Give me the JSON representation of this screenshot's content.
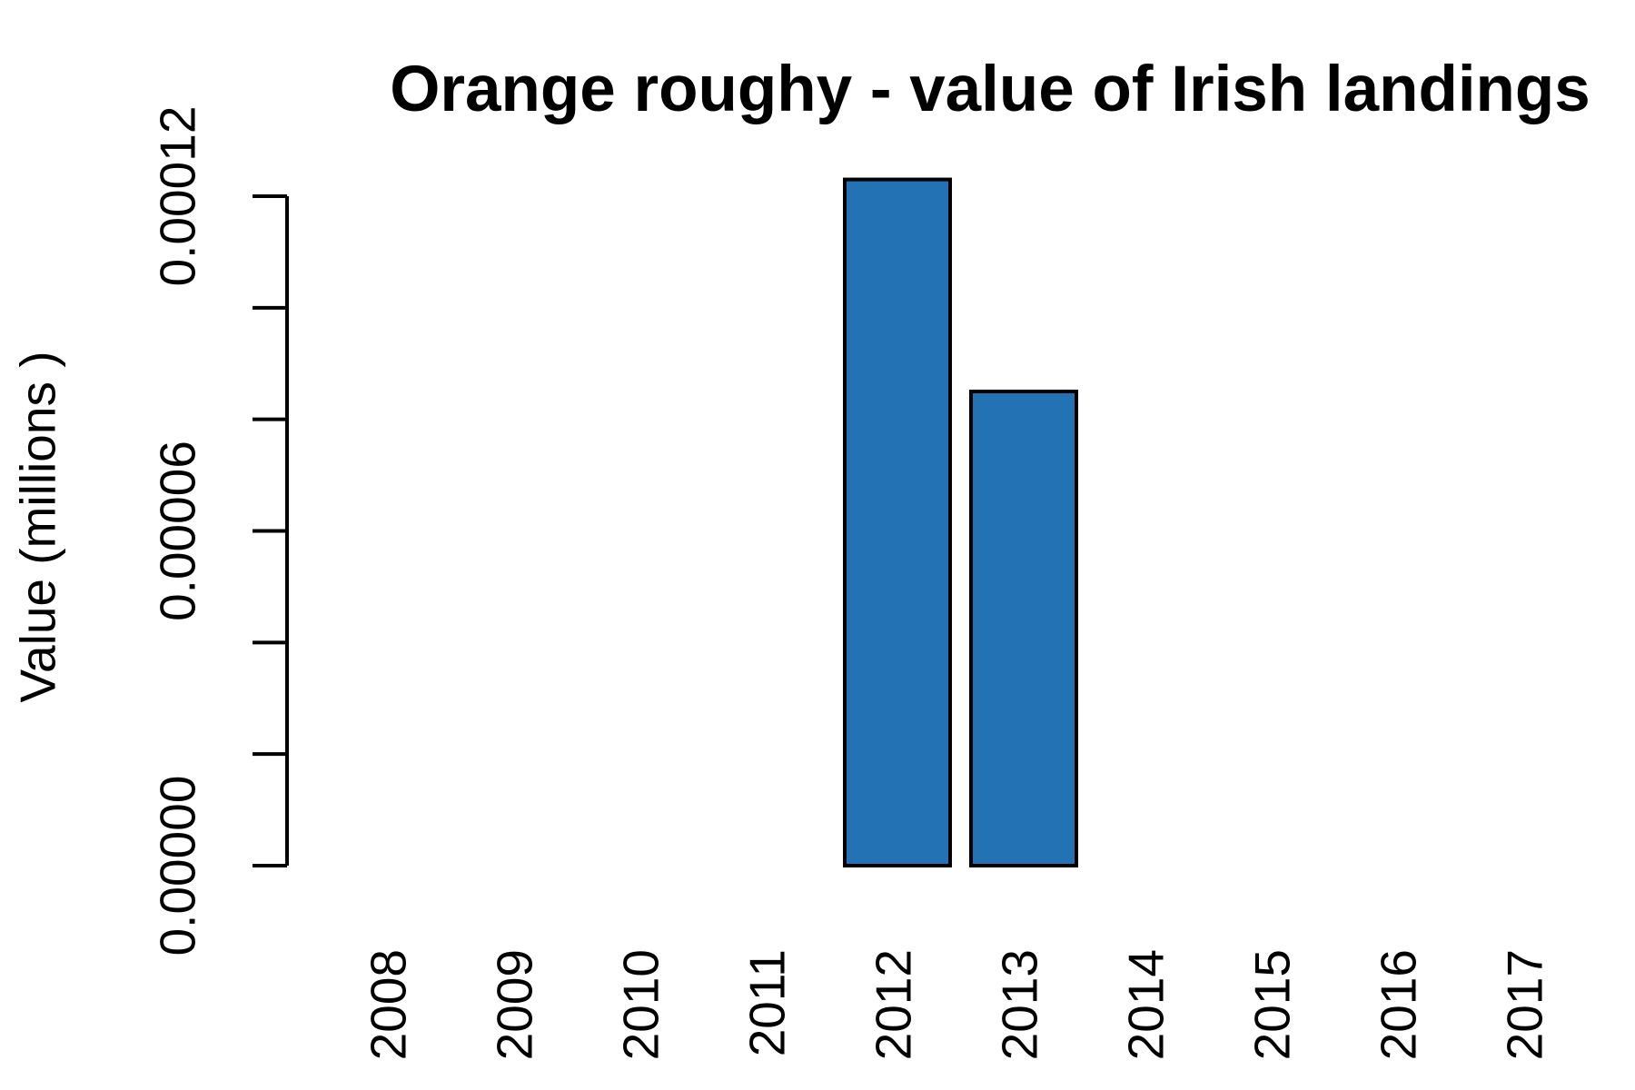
{
  "chart_data": {
    "type": "bar",
    "title": "Orange roughy - value of Irish landings",
    "y_label": "Value (millions )",
    "categories": [
      "2008",
      "2009",
      "2010",
      "2011",
      "2012",
      "2013",
      "2014",
      "2015",
      "2016",
      "2017"
    ],
    "values": [
      null,
      null,
      null,
      null,
      0.000123,
      8.5e-05,
      null,
      null,
      null,
      null
    ],
    "color": "#2372b4",
    "ylim": [
      0,
      0.00012
    ],
    "yticks": [
      {
        "value": 0,
        "label": "0.00000"
      },
      {
        "value": 2e-05,
        "label": null
      },
      {
        "value": 4e-05,
        "label": null
      },
      {
        "value": 6e-05,
        "label": "0.00006"
      },
      {
        "value": 8e-05,
        "label": null
      },
      {
        "value": 0.0001,
        "label": null
      },
      {
        "value": 0.00012,
        "label": "0.00012"
      }
    ],
    "grid": false
  }
}
